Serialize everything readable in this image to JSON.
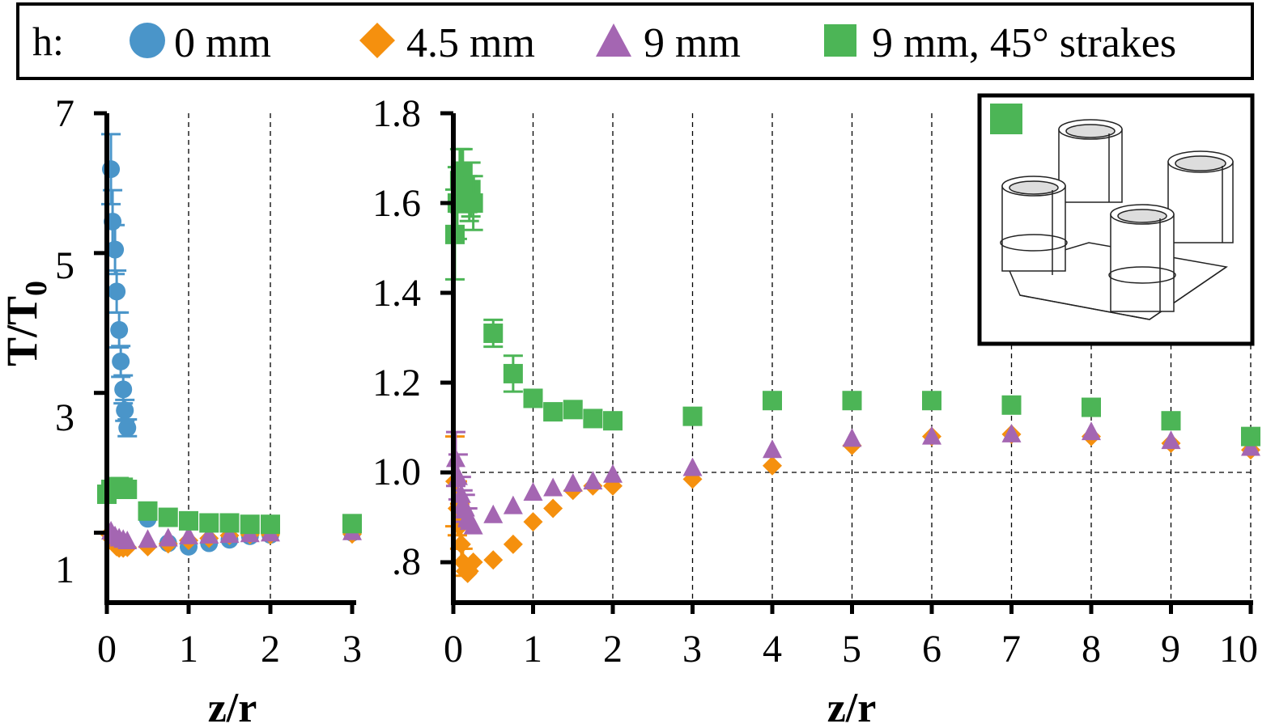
{
  "colors": {
    "h0": "#4a95c9",
    "h45": "#f5900e",
    "h9": "#a466b2",
    "h9s": "#4cb556",
    "axis": "#000000",
    "grid": "#000000"
  },
  "legend": {
    "title": "h:",
    "items": [
      {
        "key": "h0",
        "marker": "circle",
        "label": "0 mm"
      },
      {
        "key": "h45",
        "marker": "diamond",
        "label": "4.5 mm"
      },
      {
        "key": "h9",
        "marker": "triangle",
        "label": "9 mm"
      },
      {
        "key": "h9s",
        "marker": "square",
        "label": "9 mm, 45° strakes"
      }
    ]
  },
  "left_panel": {
    "ylabel": "T/T",
    "ylabel_sub": "0",
    "xlabel": "z/r",
    "xticks": [
      "0",
      "1",
      "2",
      "3"
    ],
    "yticks": [
      "7",
      "5",
      "3",
      "1"
    ]
  },
  "right_panel": {
    "xlabel": "z/r",
    "xticks": [
      "0",
      "1",
      "2",
      "3",
      "4",
      "5",
      "6",
      "7",
      "8",
      "9",
      "10"
    ],
    "yticks": [
      "1.8",
      "1.6",
      "1.4",
      "1.2",
      "1.0",
      ".8"
    ]
  },
  "inset": {
    "marker_key": "h9s",
    "image": "four-column-platform-with-strakes-drawing"
  },
  "chart_data": [
    {
      "type": "scatter",
      "panel": "left",
      "xlim": [
        0,
        3
      ],
      "ylim": [
        0,
        7
      ],
      "xticks": [
        0,
        1,
        2,
        3
      ],
      "yticks": [
        1,
        3,
        5,
        7
      ],
      "grid": "vertical dashed at x=1,2",
      "series": [
        {
          "key": "h0",
          "name": "0 mm",
          "marker": "circle",
          "x": [
            0.05,
            0.07,
            0.1,
            0.12,
            0.15,
            0.17,
            0.2,
            0.22,
            0.25,
            0.5,
            0.75,
            1.0,
            1.25,
            1.5,
            1.75,
            2.0,
            3.0
          ],
          "y": [
            6.2,
            5.45,
            5.05,
            4.45,
            3.9,
            3.45,
            3.05,
            2.75,
            2.5,
            1.2,
            0.85,
            0.8,
            0.85,
            0.9,
            0.95,
            0.97,
            1.0
          ],
          "err": [
            0.5,
            0.45,
            0.35,
            0.3,
            0.25,
            0.22,
            0.2,
            0.15,
            0.12,
            0,
            0,
            0,
            0,
            0,
            0,
            0,
            0
          ]
        },
        {
          "key": "h45",
          "name": "4.5 mm",
          "marker": "diamond",
          "x": [
            0.03,
            0.07,
            0.1,
            0.12,
            0.15,
            0.2,
            0.25,
            0.5,
            0.75,
            1.0,
            1.25,
            1.5,
            1.75,
            2.0,
            3.0
          ],
          "y": [
            0.98,
            0.9,
            0.85,
            0.8,
            0.78,
            0.78,
            0.79,
            0.8,
            0.84,
            0.89,
            0.92,
            0.96,
            0.97,
            0.97,
            0.98
          ],
          "err": []
        },
        {
          "key": "h9",
          "name": "9 mm",
          "marker": "triangle",
          "x": [
            0.05,
            0.1,
            0.15,
            0.2,
            0.25,
            0.5,
            0.75,
            1.0,
            1.25,
            1.5,
            1.75,
            2.0,
            3.0
          ],
          "y": [
            1.02,
            0.95,
            0.92,
            0.9,
            0.88,
            0.9,
            0.92,
            0.95,
            0.96,
            0.97,
            0.98,
            0.99,
            1.01
          ],
          "err": []
        },
        {
          "key": "h9s",
          "name": "9 mm, 45° strakes",
          "marker": "square",
          "x": [
            0.0,
            0.05,
            0.1,
            0.15,
            0.2,
            0.25,
            0.5,
            0.75,
            1.0,
            1.25,
            1.5,
            1.75,
            2.0,
            3.0
          ],
          "y": [
            1.55,
            1.62,
            1.65,
            1.66,
            1.65,
            1.62,
            1.31,
            1.22,
            1.17,
            1.14,
            1.14,
            1.12,
            1.12,
            1.13
          ],
          "err": []
        }
      ]
    },
    {
      "type": "scatter",
      "panel": "right",
      "xlim": [
        0,
        10
      ],
      "ylim": [
        0.71,
        1.8
      ],
      "xticks": [
        0,
        1,
        2,
        3,
        4,
        5,
        6,
        7,
        8,
        9,
        10
      ],
      "yticks": [
        0.8,
        1.0,
        1.2,
        1.4,
        1.6,
        1.8
      ],
      "grid": "vertical dashed at each integer x; horizontal dashed at y=1.0",
      "series": [
        {
          "key": "h45",
          "name": "4.5 mm",
          "marker": "diamond",
          "x": [
            0.02,
            0.05,
            0.08,
            0.1,
            0.12,
            0.15,
            0.18,
            0.2,
            0.25,
            0.5,
            0.75,
            1.0,
            1.25,
            1.5,
            1.75,
            2.0,
            3.0,
            4.0,
            5.0,
            6.0,
            7.0,
            8.0,
            9.0,
            10.0
          ],
          "y": [
            0.98,
            0.92,
            0.88,
            0.84,
            0.8,
            0.78,
            0.775,
            0.78,
            0.8,
            0.805,
            0.84,
            0.89,
            0.92,
            0.96,
            0.97,
            0.97,
            0.985,
            1.015,
            1.06,
            1.08,
            1.085,
            1.08,
            1.065,
            1.05
          ],
          "err": [
            0.1,
            0.06,
            0.05,
            0.04,
            0.03,
            0,
            0,
            0,
            0,
            0,
            0,
            0,
            0,
            0,
            0,
            0,
            0,
            0,
            0,
            0,
            0,
            0,
            0,
            0
          ]
        },
        {
          "key": "h9",
          "name": "9 mm",
          "marker": "triangle",
          "x": [
            0.03,
            0.06,
            0.1,
            0.12,
            0.15,
            0.18,
            0.2,
            0.25,
            0.5,
            0.75,
            1.0,
            1.25,
            1.5,
            1.75,
            2.0,
            3.0,
            4.0,
            5.0,
            6.0,
            7.0,
            8.0,
            9.0,
            10.0
          ],
          "y": [
            1.03,
            0.99,
            0.95,
            0.93,
            0.92,
            0.9,
            0.89,
            0.88,
            0.905,
            0.925,
            0.955,
            0.965,
            0.975,
            0.98,
            0.995,
            1.01,
            1.05,
            1.075,
            1.08,
            1.085,
            1.09,
            1.07,
            1.055
          ],
          "err": [
            0.06,
            0.05,
            0.04,
            0.03,
            0.03,
            0.02,
            0,
            0,
            0,
            0,
            0,
            0,
            0,
            0,
            0,
            0,
            0,
            0,
            0,
            0,
            0,
            0,
            0
          ]
        },
        {
          "key": "h9s",
          "name": "9 mm, 45° strakes",
          "marker": "square",
          "x": [
            0.02,
            0.05,
            0.08,
            0.1,
            0.12,
            0.15,
            0.18,
            0.2,
            0.22,
            0.25,
            0.5,
            0.75,
            1.0,
            1.25,
            1.5,
            1.75,
            2.0,
            3.0,
            4.0,
            5.0,
            6.0,
            7.0,
            8.0,
            9.0,
            10.0
          ],
          "y": [
            1.53,
            1.6,
            1.65,
            1.66,
            1.67,
            1.64,
            1.62,
            1.6,
            1.63,
            1.6,
            1.31,
            1.22,
            1.165,
            1.135,
            1.14,
            1.12,
            1.115,
            1.125,
            1.16,
            1.16,
            1.16,
            1.15,
            1.145,
            1.115,
            1.08
          ],
          "err": [
            0.1,
            0.08,
            0.07,
            0.06,
            0.05,
            0.05,
            0.04,
            0.04,
            0.06,
            0.06,
            0.03,
            0.04,
            0,
            0,
            0,
            0,
            0,
            0,
            0,
            0,
            0,
            0,
            0,
            0,
            0
          ]
        }
      ]
    }
  ]
}
